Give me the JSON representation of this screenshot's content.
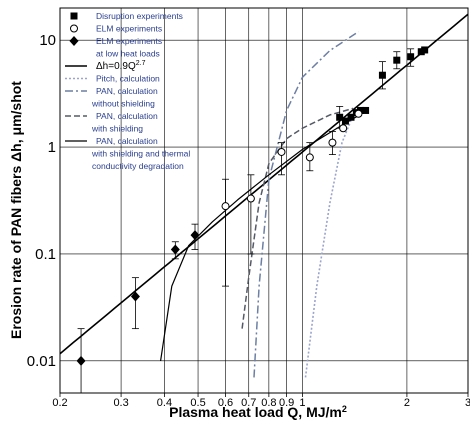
{
  "chart_data": {
    "type": "scatter",
    "title": "",
    "xlabel": "Plasma heat load Q, MJ/m",
    "xlabel_sup": "2",
    "ylabel": "Erosion rate of PAN fibers Δh, μm/shot",
    "x_scale": "log",
    "y_scale": "log",
    "xlim": [
      0.2,
      3
    ],
    "ylim": [
      0.005,
      20
    ],
    "x_ticks": [
      0.2,
      0.3,
      0.4,
      0.5,
      0.6,
      0.7,
      0.8,
      0.9,
      1,
      2,
      3
    ],
    "x_tick_labels": [
      "0.2",
      "0.3",
      "0.4",
      "0.5",
      "0.6",
      "0.7",
      "0.8",
      "0.9",
      "1",
      "2",
      "3"
    ],
    "y_ticks": [
      0.01,
      0.1,
      1,
      10
    ],
    "y_tick_labels": [
      "0.01",
      "0.1",
      "1",
      "10"
    ],
    "grid": true,
    "legend_position": "top-left",
    "series": [
      {
        "name": "Disruption experiments",
        "marker": "square-filled",
        "points": [
          {
            "x": 1.28,
            "y": 1.9,
            "err": [
              1.5,
              2.4
            ]
          },
          {
            "x": 1.33,
            "y": 1.75
          },
          {
            "x": 1.38,
            "y": 1.9
          },
          {
            "x": 1.43,
            "y": 2.1
          },
          {
            "x": 1.47,
            "y": 2.2
          },
          {
            "x": 1.52,
            "y": 2.2
          },
          {
            "x": 1.7,
            "y": 4.7,
            "err": [
              3.5,
              6.3
            ]
          },
          {
            "x": 1.87,
            "y": 6.5,
            "err": [
              5.4,
              7.8
            ]
          },
          {
            "x": 2.05,
            "y": 7.0,
            "err": [
              5.7,
              8.3
            ]
          },
          {
            "x": 2.2,
            "y": 7.8
          },
          {
            "x": 2.25,
            "y": 8.1
          }
        ]
      },
      {
        "name": "ELM experiments",
        "marker": "circle-open",
        "points": [
          {
            "x": 0.6,
            "y": 0.28,
            "err": [
              0.05,
              0.5
            ]
          },
          {
            "x": 0.71,
            "y": 0.33,
            "err": [
              0.1,
              0.55
            ]
          },
          {
            "x": 0.87,
            "y": 0.9,
            "err": [
              0.55,
              1.1
            ]
          },
          {
            "x": 1.05,
            "y": 0.8,
            "err": [
              0.6,
              1.1
            ]
          },
          {
            "x": 1.22,
            "y": 1.1,
            "err": [
              0.85,
              1.4
            ]
          },
          {
            "x": 1.31,
            "y": 1.5
          },
          {
            "x": 1.45,
            "y": 2.05
          }
        ]
      },
      {
        "name": "ELM experiments",
        "name_line2": "at low heat loads",
        "marker": "diamond-filled",
        "points": [
          {
            "x": 0.23,
            "y": 0.01,
            "err": [
              0.005,
              0.02
            ]
          },
          {
            "x": 0.33,
            "y": 0.04,
            "err": [
              0.02,
              0.06
            ]
          },
          {
            "x": 0.43,
            "y": 0.11,
            "err": [
              0.09,
              0.13
            ]
          },
          {
            "x": 0.49,
            "y": 0.15,
            "err": [
              0.11,
              0.19
            ]
          }
        ]
      }
    ],
    "curves": [
      {
        "name": "Δh=0.9Q",
        "name_sup": "2.7",
        "style": "solid-thick",
        "color": "#000000",
        "x": [
          0.2,
          0.3,
          0.5,
          1.0,
          2.0,
          3.0
        ],
        "y": [
          0.01166,
          0.03475,
          0.13864,
          0.9,
          5.8493,
          17.417
        ]
      },
      {
        "name": "Pitch, calculation",
        "style": "dotted",
        "color": "#9aa4cc",
        "x": [
          1.02,
          1.1,
          1.2,
          1.3,
          1.4
        ],
        "y": [
          0.007,
          0.05,
          0.3,
          1.1,
          2.0
        ]
      },
      {
        "name": "PAN, calculation",
        "name_line2": "without shielding",
        "style": "dashdot",
        "color": "#6d7fa3",
        "x": [
          0.725,
          0.75,
          0.8,
          0.9,
          1.0,
          1.2,
          1.45
        ],
        "y": [
          0.007,
          0.05,
          0.5,
          2.2,
          4.5,
          8.0,
          12.0
        ]
      },
      {
        "name": "PAN, calculation",
        "name_line2": "with shielding",
        "style": "dashed",
        "color": "#555a66",
        "x": [
          0.67,
          0.7,
          0.75,
          0.8,
          0.9,
          1.0,
          1.2,
          1.4
        ],
        "y": [
          0.02,
          0.06,
          0.3,
          0.7,
          1.2,
          1.5,
          2.0,
          2.3
        ]
      },
      {
        "name": "PAN, calculation",
        "name_line2": "with shielding and thermal",
        "name_line3": "conductivity degradation",
        "style": "solid",
        "color": "#000000",
        "x": [
          0.39,
          0.42,
          0.47,
          0.55,
          0.65,
          0.8,
          1.0,
          1.3,
          1.5
        ],
        "y": [
          0.01,
          0.05,
          0.12,
          0.2,
          0.32,
          0.55,
          0.95,
          1.6,
          2.1
        ]
      }
    ]
  }
}
